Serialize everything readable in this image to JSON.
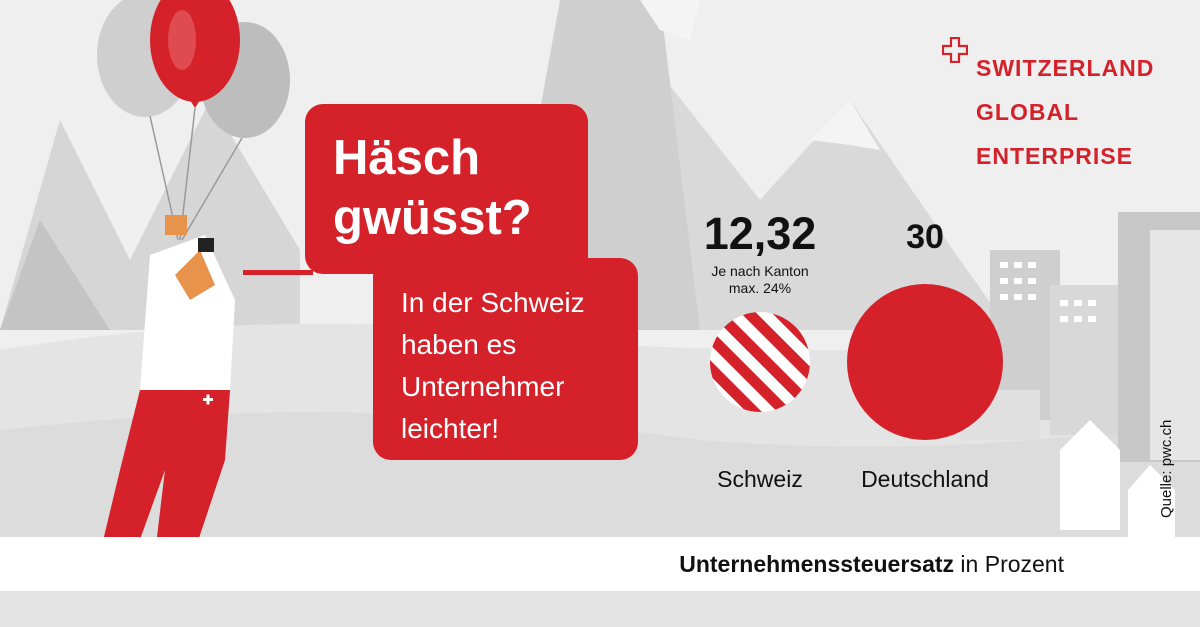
{
  "logo": {
    "lines": [
      "SWITZERLAND",
      "GLOBAL",
      "ENTERPRISE"
    ],
    "brand_color": "#d4212a"
  },
  "headline": "Häsch\ngwüsst?",
  "subtext": "In der Schweiz\nhaben es\nUnternehmer\nleichter!",
  "chart_data": {
    "type": "bar",
    "categories": [
      "Schweiz",
      "Deutschland"
    ],
    "values": [
      12.32,
      30
    ],
    "value_labels": [
      "12,32",
      "30"
    ],
    "notes": [
      "Je nach Kanton\nmax. 24%",
      ""
    ],
    "styles": [
      "striped",
      "solid"
    ],
    "colors": [
      "#d4212a",
      "#d4212a"
    ],
    "caption_bold": "Unternehmenssteuersatz",
    "caption_rest": " in Prozent"
  },
  "source": "Quelle: pwc.ch",
  "colors": {
    "accent": "#d4212a",
    "background": "#efefef"
  }
}
